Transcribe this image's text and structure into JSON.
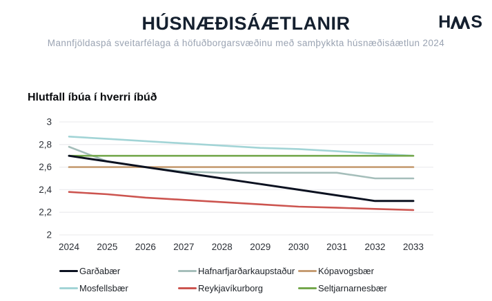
{
  "header": {
    "title": "HÚSNÆÐISÁÆTLANIR",
    "subtitle": "Mannfjöldaspá sveitarfélaga á höfuðborgarsvæðinu með samþykkta húsnæðisáætlun 2024",
    "logo_text": "HMS",
    "logo_left": "H",
    "logo_right": "S"
  },
  "colors": {
    "title_navy": "#15202f",
    "subtitle_grey": "#9aa3b2",
    "axis_text": "#2b2f36",
    "gridline": "#ededef"
  },
  "chart_data": {
    "type": "line",
    "title": "Hlutfall íbúa í hverri íbúð",
    "x": [
      2024,
      2025,
      2026,
      2027,
      2028,
      2029,
      2030,
      2031,
      2032,
      2033
    ],
    "series": [
      {
        "name": "Garðabær",
        "color": "#0b1120",
        "width": 3,
        "values": [
          2.7,
          2.65,
          2.6,
          2.55,
          2.5,
          2.45,
          2.4,
          2.35,
          2.3,
          2.3
        ]
      },
      {
        "name": "Hafnarfjarðarkaupstaður",
        "color": "#a5beba",
        "width": 2.6,
        "values": [
          2.78,
          2.65,
          2.6,
          2.56,
          2.55,
          2.55,
          2.55,
          2.55,
          2.5,
          2.5
        ]
      },
      {
        "name": "Kópavogsbær",
        "color": "#c59c72",
        "width": 2.6,
        "values": [
          2.6,
          2.6,
          2.6,
          2.6,
          2.6,
          2.6,
          2.6,
          2.6,
          2.6,
          2.6
        ]
      },
      {
        "name": "Mosfellsbær",
        "color": "#a2d4d6",
        "width": 2.6,
        "values": [
          2.87,
          2.85,
          2.83,
          2.81,
          2.79,
          2.77,
          2.76,
          2.74,
          2.72,
          2.7
        ]
      },
      {
        "name": "Reykjavíkurborg",
        "color": "#cc544f",
        "width": 2.6,
        "values": [
          2.38,
          2.36,
          2.33,
          2.31,
          2.29,
          2.27,
          2.25,
          2.24,
          2.23,
          2.22
        ]
      },
      {
        "name": "Seltjarnarnesbær",
        "color": "#73a74b",
        "width": 2.6,
        "values": [
          2.7,
          2.7,
          2.7,
          2.7,
          2.7,
          2.7,
          2.7,
          2.7,
          2.7,
          2.7
        ]
      }
    ],
    "ylim": [
      2,
      3
    ],
    "yticks": [
      {
        "v": 3.0,
        "label": "3"
      },
      {
        "v": 2.8,
        "label": "2,8"
      },
      {
        "v": 2.6,
        "label": "2,6"
      },
      {
        "v": 2.4,
        "label": "2,4"
      },
      {
        "v": 2.2,
        "label": "2,2"
      },
      {
        "v": 2.0,
        "label": "2"
      }
    ],
    "grid": true,
    "xlabel": "",
    "ylabel": "",
    "legend_position": "bottom",
    "legend_order": [
      "Garðabær",
      "Hafnarfjarðarkaupstaður",
      "Kópavogsbær",
      "Mosfellsbær",
      "Reykjavíkurborg",
      "Seltjarnarnesbær"
    ],
    "draw_order": [
      "Mosfellsbær",
      "Hafnarfjarðarkaupstaður",
      "Kópavogsbær",
      "Reykjavíkurborg",
      "Seltjarnarnesbær",
      "Garðabær"
    ]
  }
}
